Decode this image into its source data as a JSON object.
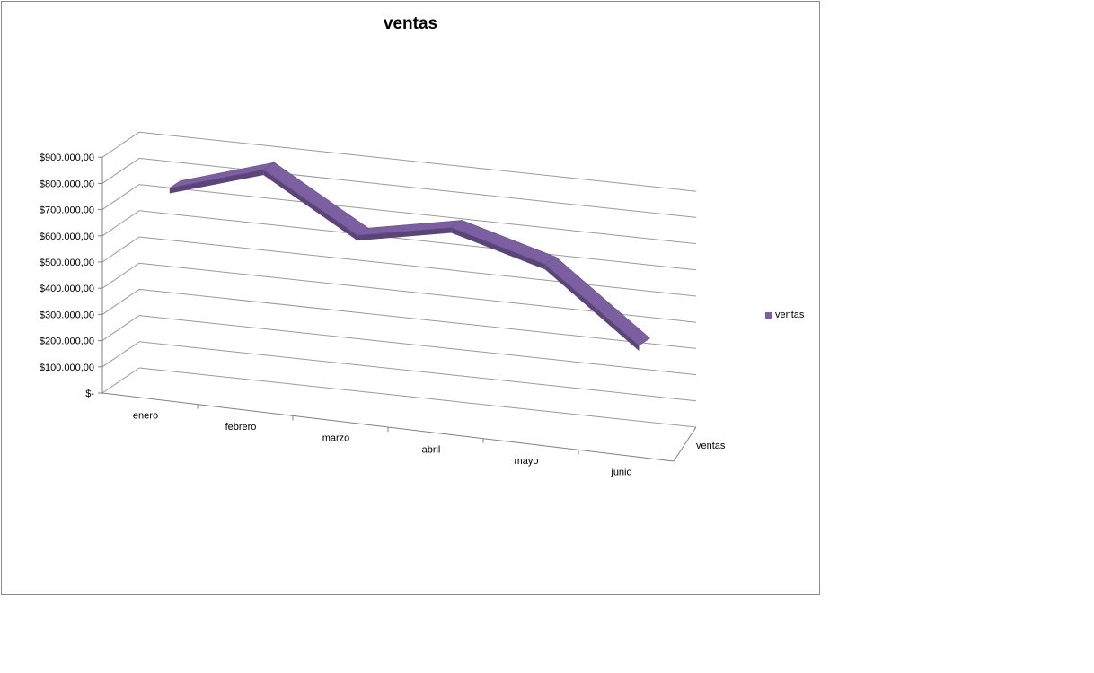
{
  "chart_data": {
    "type": "line",
    "title": "ventas",
    "categories": [
      "enero",
      "febrero",
      "marzo",
      "abril",
      "mayo",
      "junio"
    ],
    "series": [
      {
        "name": "ventas",
        "values": [
          750000,
          860000,
          650000,
          720000,
          620000,
          350000
        ]
      }
    ],
    "ylim": [
      0,
      900000
    ],
    "yticks": [
      "$-",
      "$100.000,00",
      "$200.000,00",
      "$300.000,00",
      "$400.000,00",
      "$500.000,00",
      "$600.000,00",
      "$700.000,00",
      "$800.000,00",
      "$900.000,00"
    ],
    "depth_label": "ventas",
    "grid": true,
    "legend_position": "right",
    "series_color": "#7b5fa0"
  }
}
